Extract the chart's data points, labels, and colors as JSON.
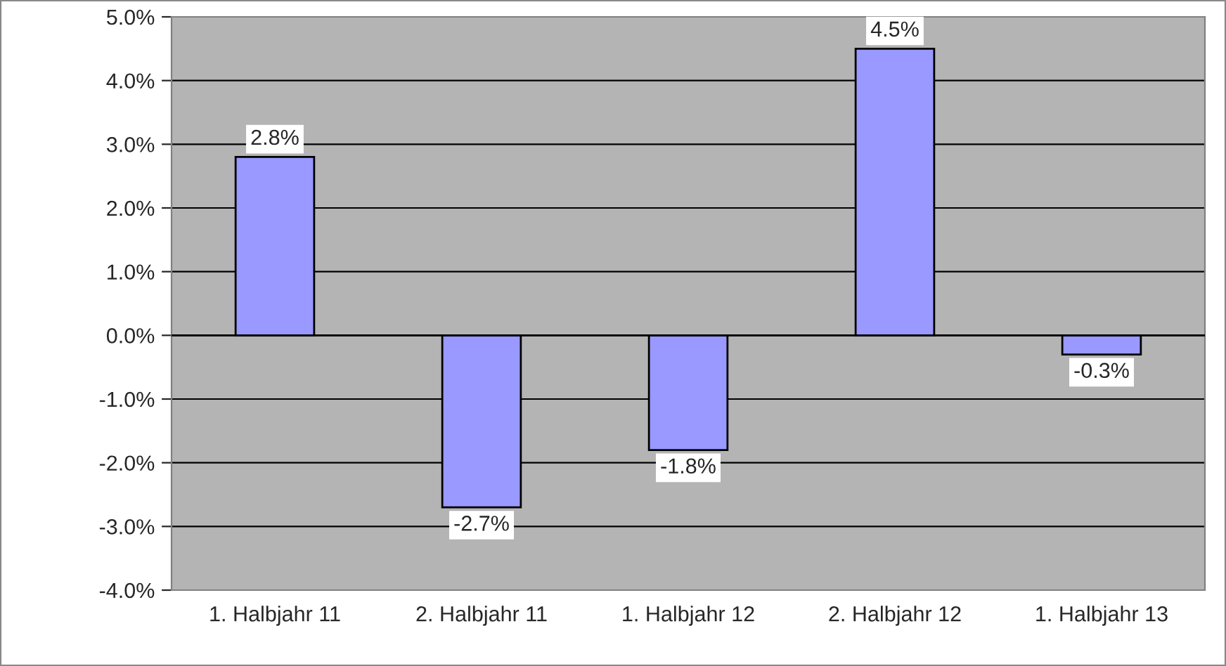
{
  "chart_data": {
    "type": "bar",
    "categories": [
      "1. Halbjahr 11",
      "2. Halbjahr 11",
      "1. Halbjahr 12",
      "2. Halbjahr 12",
      "1. Halbjahr 13"
    ],
    "values": [
      2.8,
      -2.7,
      -1.8,
      4.5,
      -0.3
    ],
    "value_labels": [
      "2.8%",
      "-2.7%",
      "-1.8%",
      "4.5%",
      "-0.3%"
    ],
    "color": "#9999ff",
    "ylim": [
      -4,
      5
    ],
    "yticks": [
      {
        "value": -4,
        "label": "-4.0%"
      },
      {
        "value": -3,
        "label": "-3.0%"
      },
      {
        "value": -2,
        "label": "-2.0%"
      },
      {
        "value": -1,
        "label": "-1.0%"
      },
      {
        "value": 0,
        "label": "0.0%"
      },
      {
        "value": 1,
        "label": "1.0%"
      },
      {
        "value": 2,
        "label": "2.0%"
      },
      {
        "value": 3,
        "label": "3.0%"
      },
      {
        "value": 4,
        "label": "4.0%"
      },
      {
        "value": 5,
        "label": "5.0%"
      }
    ],
    "grid": "y",
    "legend": false
  }
}
